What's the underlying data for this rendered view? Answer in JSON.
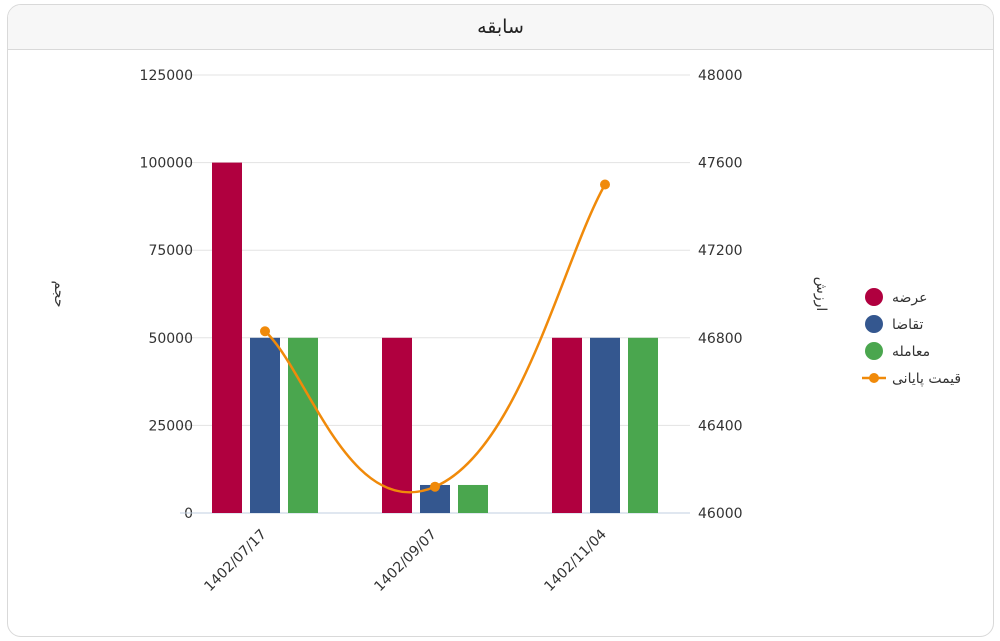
{
  "header": {
    "title": "سابقه"
  },
  "chart_data": {
    "type": "bar",
    "categories": [
      "1402/07/17",
      "1402/09/07",
      "1402/11/04"
    ],
    "series": [
      {
        "name": "عرضه",
        "type": "bar",
        "axis": "left",
        "color": "#b0003f",
        "values": [
          100000,
          50000,
          50000
        ]
      },
      {
        "name": "تقاضا",
        "type": "bar",
        "axis": "left",
        "color": "#34578f",
        "values": [
          50000,
          8000,
          50000
        ]
      },
      {
        "name": "معامله",
        "type": "bar",
        "axis": "left",
        "color": "#4aa64e",
        "values": [
          50000,
          8000,
          50000
        ]
      },
      {
        "name": "قیمت پایانی",
        "type": "line",
        "axis": "right",
        "color": "#f08a0a",
        "values": [
          46830,
          46120,
          47500
        ]
      }
    ],
    "y_left": {
      "label": "حجم",
      "ylim": [
        0,
        125000
      ],
      "ticks": [
        "0",
        "25000",
        "50000",
        "75000",
        "100000",
        "125000"
      ]
    },
    "y_right": {
      "label": "ارزش",
      "ylim": [
        46000,
        48000
      ],
      "ticks": [
        "46000",
        "46400",
        "46800",
        "47200",
        "47600",
        "48000"
      ]
    },
    "grid": true,
    "legend": "right"
  }
}
